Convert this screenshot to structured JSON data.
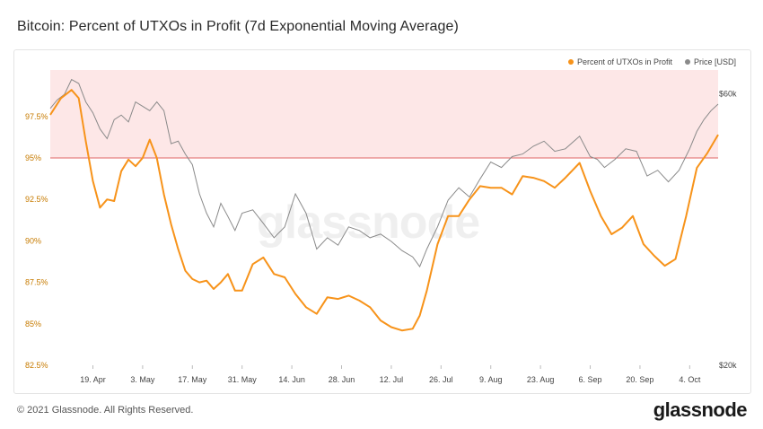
{
  "title": "Bitcoin: Percent of UTXOs in Profit (7d Exponential Moving Average)",
  "footer": {
    "copyright": "© 2021 Glassnode. All Rights Reserved.",
    "logo": "glassnode"
  },
  "watermark": "glassnode",
  "colors": {
    "utxo": "#f7931a",
    "price": "#8a8a8a",
    "band_fill": "#fde7e7",
    "threshold": "#e06666"
  },
  "chart_data": {
    "type": "line",
    "title": "Bitcoin: Percent of UTXOs in Profit (7d Exponential Moving Average)",
    "x_range": [
      "2021-04-07",
      "2021-10-12"
    ],
    "x_ticks": [
      "19. Apr",
      "3. May",
      "17. May",
      "31. May",
      "14. Jun",
      "28. Jun",
      "12. Jul",
      "26. Jul",
      "9. Aug",
      "23. Aug",
      "6. Sep",
      "20. Sep",
      "4. Oct"
    ],
    "y_left": {
      "ticks": [
        "82.5%",
        "85%",
        "87.5%",
        "90%",
        "92.5%",
        "95%",
        "97.5%"
      ],
      "range": [
        82.5,
        100.3
      ]
    },
    "y_right": {
      "ticks": [
        "$20k",
        "$60k"
      ],
      "scale": "log",
      "range_usd": [
        20000,
        66000
      ]
    },
    "threshold": 95,
    "highlight_band": [
      95,
      100.3
    ],
    "legend": [
      "Percent of UTXOs in Profit",
      "Price [USD]"
    ],
    "series": [
      {
        "name": "Percent of UTXOs in Profit",
        "axis": "left",
        "x": [
          "2021-04-07",
          "2021-04-10",
          "2021-04-13",
          "2021-04-15",
          "2021-04-17",
          "2021-04-19",
          "2021-04-21",
          "2021-04-23",
          "2021-04-25",
          "2021-04-27",
          "2021-04-29",
          "2021-05-01",
          "2021-05-03",
          "2021-05-05",
          "2021-05-07",
          "2021-05-09",
          "2021-05-11",
          "2021-05-13",
          "2021-05-15",
          "2021-05-17",
          "2021-05-19",
          "2021-05-21",
          "2021-05-23",
          "2021-05-25",
          "2021-05-27",
          "2021-05-29",
          "2021-05-31",
          "2021-06-03",
          "2021-06-06",
          "2021-06-09",
          "2021-06-12",
          "2021-06-15",
          "2021-06-18",
          "2021-06-21",
          "2021-06-24",
          "2021-06-27",
          "2021-06-30",
          "2021-07-03",
          "2021-07-06",
          "2021-07-09",
          "2021-07-12",
          "2021-07-15",
          "2021-07-18",
          "2021-07-20",
          "2021-07-22",
          "2021-07-25",
          "2021-07-28",
          "2021-07-31",
          "2021-08-03",
          "2021-08-06",
          "2021-08-09",
          "2021-08-12",
          "2021-08-15",
          "2021-08-18",
          "2021-08-21",
          "2021-08-24",
          "2021-08-27",
          "2021-08-30",
          "2021-09-03",
          "2021-09-06",
          "2021-09-09",
          "2021-09-12",
          "2021-09-15",
          "2021-09-18",
          "2021-09-21",
          "2021-09-24",
          "2021-09-27",
          "2021-09-30",
          "2021-10-03",
          "2021-10-06",
          "2021-10-09",
          "2021-10-12"
        ],
        "values": [
          97.6,
          98.6,
          99.1,
          98.6,
          96.0,
          93.6,
          92.0,
          92.5,
          92.4,
          94.2,
          94.9,
          94.5,
          95.0,
          96.1,
          95.0,
          92.8,
          91.0,
          89.5,
          88.2,
          87.7,
          87.5,
          87.6,
          87.1,
          87.5,
          88.0,
          87.0,
          87.0,
          88.6,
          89.0,
          88.0,
          87.8,
          86.8,
          86.0,
          85.6,
          86.6,
          86.5,
          86.7,
          86.4,
          86.0,
          85.2,
          84.8,
          84.6,
          84.7,
          85.5,
          87.0,
          89.8,
          91.5,
          91.5,
          92.5,
          93.3,
          93.2,
          93.2,
          92.8,
          93.9,
          93.8,
          93.6,
          93.2,
          93.8,
          94.7,
          93.0,
          91.5,
          90.4,
          90.8,
          91.5,
          89.8,
          89.1,
          88.5,
          88.9,
          91.5,
          94.4,
          95.3,
          96.4
        ]
      },
      {
        "name": "Price [USD]",
        "axis": "right",
        "x": [
          "2021-04-07",
          "2021-04-09",
          "2021-04-11",
          "2021-04-13",
          "2021-04-15",
          "2021-04-17",
          "2021-04-19",
          "2021-04-21",
          "2021-04-23",
          "2021-04-25",
          "2021-04-27",
          "2021-04-29",
          "2021-05-01",
          "2021-05-03",
          "2021-05-05",
          "2021-05-07",
          "2021-05-09",
          "2021-05-11",
          "2021-05-13",
          "2021-05-15",
          "2021-05-17",
          "2021-05-19",
          "2021-05-21",
          "2021-05-23",
          "2021-05-25",
          "2021-05-27",
          "2021-05-29",
          "2021-05-31",
          "2021-06-03",
          "2021-06-06",
          "2021-06-09",
          "2021-06-12",
          "2021-06-15",
          "2021-06-18",
          "2021-06-21",
          "2021-06-24",
          "2021-06-27",
          "2021-06-30",
          "2021-07-03",
          "2021-07-06",
          "2021-07-09",
          "2021-07-12",
          "2021-07-15",
          "2021-07-18",
          "2021-07-20",
          "2021-07-22",
          "2021-07-25",
          "2021-07-28",
          "2021-07-31",
          "2021-08-03",
          "2021-08-06",
          "2021-08-09",
          "2021-08-12",
          "2021-08-15",
          "2021-08-18",
          "2021-08-21",
          "2021-08-24",
          "2021-08-27",
          "2021-08-30",
          "2021-09-03",
          "2021-09-06",
          "2021-09-08",
          "2021-09-10",
          "2021-09-13",
          "2021-09-16",
          "2021-09-19",
          "2021-09-22",
          "2021-09-25",
          "2021-09-28",
          "2021-10-01",
          "2021-10-04",
          "2021-10-06",
          "2021-10-08",
          "2021-10-10",
          "2021-10-12"
        ],
        "values": [
          56500,
          58500,
          59800,
          63500,
          62500,
          58000,
          55500,
          52000,
          50000,
          54000,
          55000,
          53500,
          58000,
          57000,
          56000,
          58000,
          56000,
          49000,
          49500,
          47000,
          45000,
          40000,
          37000,
          35000,
          38500,
          36500,
          34500,
          37000,
          37500,
          35500,
          33500,
          35000,
          40000,
          37000,
          32000,
          33500,
          32500,
          35000,
          34500,
          33500,
          34000,
          33000,
          31800,
          31000,
          29800,
          32000,
          35000,
          39000,
          41000,
          39500,
          42500,
          45500,
          44500,
          46500,
          47000,
          48500,
          49500,
          47500,
          48000,
          50500,
          46500,
          46000,
          44500,
          46000,
          48000,
          47500,
          43000,
          44000,
          42000,
          44000,
          48000,
          51500,
          54000,
          56000,
          57500
        ]
      }
    ]
  }
}
